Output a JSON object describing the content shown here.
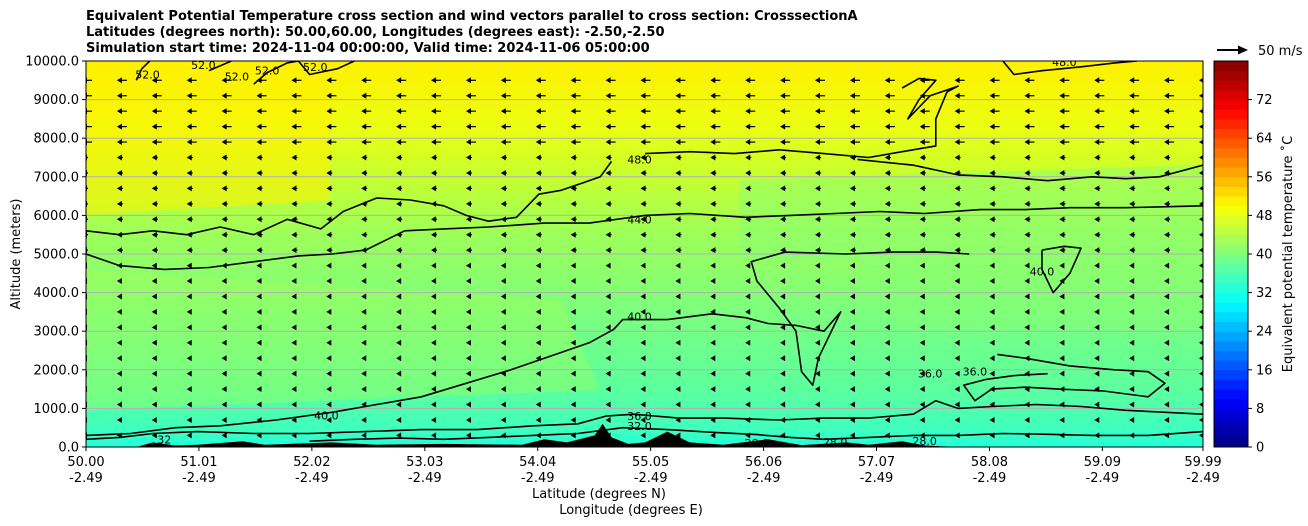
{
  "titles": {
    "line1": "Equivalent Potential Temperature cross section and wind vectors parallel to cross section: CrosssectionA",
    "line2": "Latitudes (degrees north): 50.00,60.00, Longitudes (degrees east): -2.50,-2.50",
    "line3": "Simulation start time: 2024-11-04 00:00:00, Valid time: 2024-11-06 05:00:00"
  },
  "chart_data": {
    "type": "contour",
    "ylabel": "Altitude (meters)",
    "xlabel_lat": "Latitude (degrees N)",
    "xlabel_lon": "Longitude (degrees E)",
    "ylim": [
      0,
      10000
    ],
    "xlim": [
      50.0,
      59.99
    ],
    "y_ticks": [
      "0.0",
      "1000.0",
      "2000.0",
      "3000.0",
      "4000.0",
      "5000.0",
      "6000.0",
      "7000.0",
      "8000.0",
      "9000.0",
      "10000.0"
    ],
    "x_ticks": [
      {
        "lat": "50.00",
        "lon": "-2.49"
      },
      {
        "lat": "51.01",
        "lon": "-2.49"
      },
      {
        "lat": "52.02",
        "lon": "-2.49"
      },
      {
        "lat": "53.03",
        "lon": "-2.49"
      },
      {
        "lat": "54.04",
        "lon": "-2.49"
      },
      {
        "lat": "55.05",
        "lon": "-2.49"
      },
      {
        "lat": "56.06",
        "lon": "-2.49"
      },
      {
        "lat": "57.07",
        "lon": "-2.49"
      },
      {
        "lat": "58.08",
        "lon": "-2.49"
      },
      {
        "lat": "59.09",
        "lon": "-2.49"
      },
      {
        "lat": "59.99",
        "lon": "-2.49"
      }
    ],
    "colorbar": {
      "label": "Equivalent potential temperature ˚C",
      "range": [
        0,
        80
      ],
      "ticks": [
        "0",
        "8",
        "16",
        "24",
        "32",
        "40",
        "48",
        "56",
        "64",
        "72"
      ]
    },
    "wind_reference": "50 m/s",
    "contour_labels": [
      {
        "text": "52.0",
        "lat": 50.55,
        "alt": 9650
      },
      {
        "text": "52.0",
        "lat": 51.05,
        "alt": 9900
      },
      {
        "text": "52.0",
        "lat": 51.35,
        "alt": 9600
      },
      {
        "text": "52.0",
        "lat": 51.62,
        "alt": 9750
      },
      {
        "text": "52.0",
        "lat": 52.05,
        "alt": 9850
      },
      {
        "text": "48.0",
        "lat": 54.95,
        "alt": 7450
      },
      {
        "text": "48.0",
        "lat": 58.75,
        "alt": 9980
      },
      {
        "text": "44.0",
        "lat": 54.95,
        "alt": 5900
      },
      {
        "text": "40.0",
        "lat": 54.95,
        "alt": 3380
      },
      {
        "text": "40.0",
        "lat": 52.15,
        "alt": 820
      },
      {
        "text": "40.0",
        "lat": 58.55,
        "alt": 4550
      },
      {
        "text": "36.0",
        "lat": 54.95,
        "alt": 800
      },
      {
        "text": "36.0",
        "lat": 57.55,
        "alt": 1900
      },
      {
        "text": "36.0",
        "lat": 57.95,
        "alt": 1950
      },
      {
        "text": "32.0",
        "lat": 54.95,
        "alt": 550
      },
      {
        "text": "28.0",
        "lat": 56.0,
        "alt": 100
      },
      {
        "text": "28.0",
        "lat": 56.7,
        "alt": 130
      },
      {
        "text": "28.0",
        "lat": 57.5,
        "alt": 150
      },
      {
        "text": "32",
        "lat": 50.7,
        "alt": 200
      }
    ],
    "contours": [
      {
        "level": 52,
        "points": [
          [
            50.45,
            9500
          ],
          [
            50.5,
            9800
          ],
          [
            50.57,
            10000
          ]
        ]
      },
      {
        "level": 52,
        "points": [
          [
            51.1,
            9750
          ],
          [
            51.22,
            9900
          ],
          [
            51.3,
            10000
          ]
        ]
      },
      {
        "level": 52,
        "points": [
          [
            51.5,
            9400
          ],
          [
            51.62,
            9700
          ],
          [
            51.8,
            9950
          ],
          [
            51.9,
            10000
          ]
        ]
      },
      {
        "level": 52,
        "points": [
          [
            51.9,
            10000
          ],
          [
            52.0,
            9650
          ],
          [
            52.25,
            9800
          ],
          [
            52.4,
            10000
          ]
        ]
      },
      {
        "level": 48,
        "points": [
          [
            50.0,
            5600
          ],
          [
            50.3,
            5500
          ],
          [
            50.6,
            5600
          ],
          [
            50.9,
            5500
          ],
          [
            51.2,
            5700
          ],
          [
            51.5,
            5500
          ],
          [
            51.8,
            5900
          ],
          [
            52.1,
            5650
          ],
          [
            52.3,
            6100
          ],
          [
            52.6,
            6450
          ],
          [
            52.9,
            6400
          ],
          [
            53.2,
            6250
          ],
          [
            53.4,
            6000
          ],
          [
            53.6,
            5850
          ],
          [
            53.85,
            5950
          ],
          [
            54.05,
            6550
          ],
          [
            54.25,
            6650
          ],
          [
            54.45,
            6850
          ],
          [
            54.6,
            7000
          ],
          [
            54.7,
            7400
          ]
        ]
      },
      {
        "level": 48,
        "points": [
          [
            55.0,
            7600
          ],
          [
            55.4,
            7650
          ],
          [
            55.8,
            7600
          ],
          [
            56.2,
            7700
          ],
          [
            56.6,
            7600
          ],
          [
            57.0,
            7500
          ],
          [
            57.3,
            7650
          ],
          [
            57.6,
            7800
          ],
          [
            57.6,
            8500
          ],
          [
            57.7,
            9200
          ],
          [
            57.8,
            9350
          ],
          [
            57.55,
            9100
          ],
          [
            57.35,
            8500
          ],
          [
            57.45,
            9000
          ],
          [
            57.6,
            9500
          ],
          [
            57.45,
            9550
          ],
          [
            57.3,
            9300
          ]
        ]
      },
      {
        "level": 48,
        "points": [
          [
            56.9,
            7450
          ],
          [
            57.4,
            7300
          ],
          [
            57.8,
            7050
          ],
          [
            58.2,
            7000
          ],
          [
            58.6,
            6900
          ],
          [
            59.0,
            7000
          ],
          [
            59.3,
            6950
          ],
          [
            59.6,
            7000
          ],
          [
            59.99,
            7300
          ]
        ]
      },
      {
        "level": 48,
        "points": [
          [
            58.2,
            10000
          ],
          [
            58.3,
            9650
          ],
          [
            58.55,
            9750
          ],
          [
            58.9,
            9850
          ],
          [
            59.2,
            9950
          ],
          [
            59.4,
            10000
          ]
        ]
      },
      {
        "level": 44,
        "points": [
          [
            50.0,
            5000
          ],
          [
            50.3,
            4700
          ],
          [
            50.7,
            4600
          ],
          [
            51.1,
            4650
          ],
          [
            51.5,
            4800
          ],
          [
            51.9,
            4950
          ],
          [
            52.2,
            5000
          ],
          [
            52.5,
            5100
          ],
          [
            52.85,
            5600
          ],
          [
            53.2,
            5650
          ],
          [
            53.6,
            5700
          ],
          [
            54.1,
            5800
          ],
          [
            54.5,
            5800
          ],
          [
            55.0,
            6000
          ],
          [
            55.4,
            6050
          ],
          [
            55.9,
            5950
          ],
          [
            56.3,
            6000
          ],
          [
            56.7,
            6050
          ],
          [
            57.1,
            6100
          ],
          [
            57.5,
            6050
          ],
          [
            58.0,
            6150
          ],
          [
            58.4,
            6150
          ],
          [
            58.8,
            6200
          ],
          [
            59.3,
            6200
          ],
          [
            59.99,
            6250
          ]
        ]
      },
      {
        "level": 40,
        "points": [
          [
            50.0,
            300
          ],
          [
            50.4,
            350
          ],
          [
            50.8,
            500
          ],
          [
            51.2,
            550
          ],
          [
            51.7,
            700
          ],
          [
            52.2,
            900
          ],
          [
            52.6,
            1100
          ],
          [
            53.0,
            1300
          ],
          [
            53.4,
            1650
          ],
          [
            53.8,
            2000
          ],
          [
            54.2,
            2400
          ],
          [
            54.5,
            2700
          ],
          [
            54.72,
            3050
          ],
          [
            54.8,
            3300
          ],
          [
            55.2,
            3300
          ],
          [
            55.6,
            3450
          ],
          [
            55.9,
            3350
          ],
          [
            56.1,
            3200
          ],
          [
            56.35,
            3150
          ],
          [
            56.6,
            3000
          ],
          [
            56.75,
            3500
          ],
          [
            56.55,
            2300
          ],
          [
            56.5,
            1600
          ],
          [
            56.4,
            1950
          ],
          [
            56.35,
            3000
          ],
          [
            56.2,
            3600
          ],
          [
            56.0,
            4300
          ],
          [
            55.95,
            4800
          ],
          [
            56.25,
            5050
          ],
          [
            56.8,
            5000
          ],
          [
            57.2,
            5050
          ],
          [
            57.6,
            5050
          ],
          [
            57.9,
            5000
          ]
        ]
      },
      {
        "level": 40,
        "points": [
          [
            58.55,
            5100
          ],
          [
            58.75,
            5200
          ],
          [
            58.9,
            5150
          ],
          [
            58.8,
            4500
          ],
          [
            58.65,
            4000
          ],
          [
            58.55,
            4600
          ],
          [
            58.55,
            5100
          ]
        ]
      },
      {
        "level": 36,
        "points": [
          [
            50.0,
            200
          ],
          [
            50.3,
            250
          ],
          [
            50.6,
            350
          ],
          [
            51.0,
            400
          ],
          [
            51.5,
            350
          ],
          [
            52.0,
            350
          ],
          [
            52.5,
            400
          ],
          [
            53.0,
            450
          ],
          [
            53.5,
            450
          ],
          [
            54.0,
            550
          ],
          [
            54.4,
            600
          ],
          [
            54.65,
            800
          ],
          [
            54.9,
            850
          ],
          [
            55.3,
            750
          ],
          [
            55.7,
            750
          ],
          [
            56.2,
            700
          ],
          [
            56.6,
            750
          ],
          [
            57.0,
            750
          ],
          [
            57.4,
            850
          ],
          [
            57.6,
            1200
          ],
          [
            57.8,
            1000
          ],
          [
            58.1,
            1050
          ],
          [
            58.5,
            1100
          ],
          [
            58.9,
            1050
          ],
          [
            59.3,
            950
          ],
          [
            59.99,
            850
          ]
        ]
      },
      {
        "level": 36,
        "points": [
          [
            58.15,
            2400
          ],
          [
            58.4,
            2300
          ],
          [
            58.8,
            2100
          ],
          [
            59.2,
            2000
          ],
          [
            59.5,
            1950
          ],
          [
            59.65,
            1650
          ],
          [
            59.5,
            1300
          ],
          [
            59.1,
            1450
          ],
          [
            58.7,
            1500
          ],
          [
            58.4,
            1550
          ],
          [
            58.1,
            1500
          ],
          [
            57.95,
            1200
          ],
          [
            57.85,
            1600
          ],
          [
            58.05,
            1750
          ],
          [
            58.3,
            1850
          ],
          [
            58.6,
            1900
          ]
        ]
      },
      {
        "level": 32,
        "points": [
          [
            52.0,
            150
          ],
          [
            52.4,
            200
          ],
          [
            52.8,
            230
          ],
          [
            53.2,
            200
          ],
          [
            53.6,
            250
          ],
          [
            54.0,
            300
          ],
          [
            54.4,
            350
          ],
          [
            54.8,
            500
          ],
          [
            55.2,
            450
          ],
          [
            55.6,
            380
          ],
          [
            56.0,
            320
          ],
          [
            56.3,
            250
          ],
          [
            56.6,
            200
          ],
          [
            57.0,
            250
          ],
          [
            57.4,
            300
          ],
          [
            57.8,
            300
          ],
          [
            58.2,
            350
          ],
          [
            58.6,
            330
          ],
          [
            59.0,
            300
          ],
          [
            59.5,
            300
          ],
          [
            59.99,
            400
          ]
        ]
      }
    ]
  }
}
